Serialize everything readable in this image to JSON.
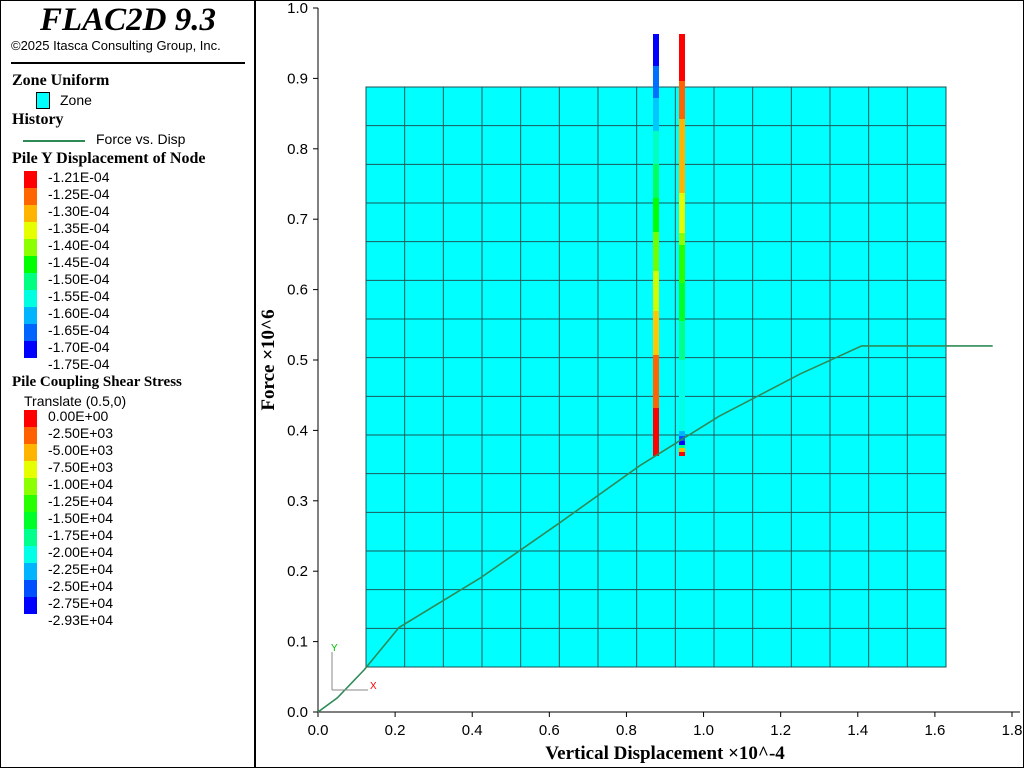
{
  "header": {
    "title": "FLAC2D 9.3",
    "copyright": "©2025 Itasca Consulting Group, Inc."
  },
  "legend": {
    "zone_heading": "Zone Uniform",
    "zone_label": "Zone",
    "zone_color": "#00ffff",
    "history_heading": "History",
    "history_label": "Force vs. Disp",
    "history_color": "#2e8b57",
    "disp_heading": "Pile Y Displacement of Node",
    "disp_labels": [
      "-1.21E-04",
      "-1.25E-04",
      "-1.30E-04",
      "-1.35E-04",
      "-1.40E-04",
      "-1.45E-04",
      "-1.50E-04",
      "-1.55E-04",
      "-1.60E-04",
      "-1.65E-04",
      "-1.70E-04",
      "-1.75E-04"
    ],
    "disp_colors": [
      "#ff0000",
      "#ff6600",
      "#ffb400",
      "#e6ff00",
      "#8cff00",
      "#00ff00",
      "#00ff80",
      "#00ffe0",
      "#00b4ff",
      "#0064ff",
      "#0000ff"
    ],
    "shear_heading": "Pile Coupling Shear Stress",
    "shear_sub": "Translate (0.5,0)",
    "shear_labels": [
      "0.00E+00",
      "-2.50E+03",
      "-5.00E+03",
      "-7.50E+03",
      "-1.00E+04",
      "-1.25E+04",
      "-1.50E+04",
      "-1.75E+04",
      "-2.00E+04",
      "-2.25E+04",
      "-2.50E+04",
      "-2.75E+04",
      "-2.93E+04"
    ],
    "shear_colors": [
      "#ff0000",
      "#ff6000",
      "#ffb400",
      "#e6ff00",
      "#8cff00",
      "#28ff00",
      "#00ff28",
      "#00ff8c",
      "#00ffe6",
      "#00b4ff",
      "#0050ff",
      "#0000ff"
    ]
  },
  "chart_data": {
    "type": "line",
    "xlabel": "Vertical Displacement ×10^-4",
    "ylabel": "Force ×10^6",
    "xlim": [
      0,
      1.8
    ],
    "ylim": [
      0,
      1.0
    ],
    "xticks": [
      "0.0",
      "0.2",
      "0.4",
      "0.6",
      "0.8",
      "1.0",
      "1.2",
      "1.4",
      "1.6",
      "1.8"
    ],
    "yticks": [
      "0.0",
      "0.1",
      "0.2",
      "0.3",
      "0.4",
      "0.5",
      "0.6",
      "0.7",
      "0.8",
      "0.9",
      "1.0"
    ],
    "series": [
      {
        "name": "Force vs. Disp",
        "x": [
          0,
          0.05,
          0.12,
          0.21,
          0.42,
          0.63,
          0.835,
          1.04,
          1.25,
          1.41,
          1.75
        ],
        "y": [
          0,
          0.02,
          0.06,
          0.12,
          0.19,
          0.27,
          0.35,
          0.42,
          0.48,
          0.52,
          0.52
        ]
      }
    ]
  },
  "axes_icon": {
    "x": "X",
    "y": "Y"
  }
}
